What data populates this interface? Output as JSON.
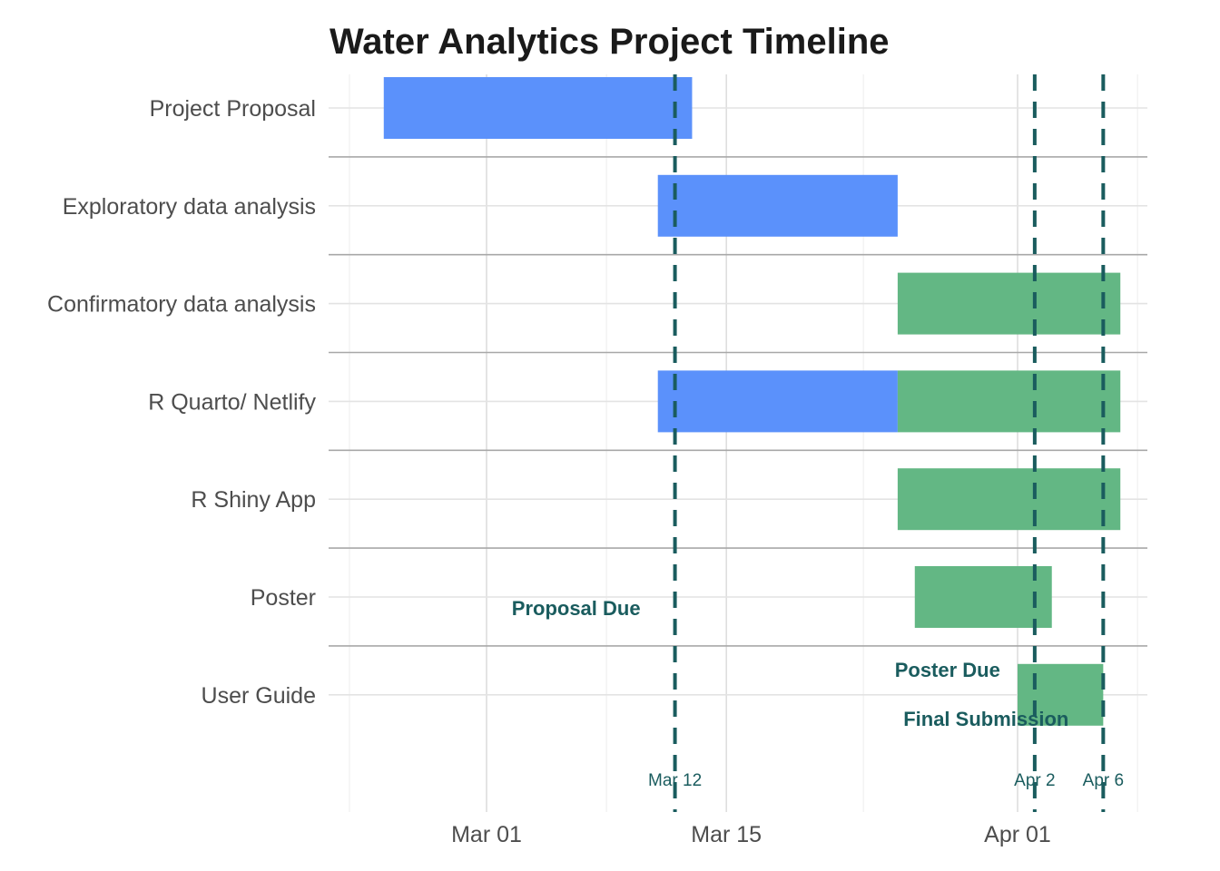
{
  "chart_data": {
    "type": "gantt",
    "title": "Water Analytics Project Timeline",
    "xlabel": "",
    "ylabel": "",
    "xlim": [
      "2024-02-22",
      "2024-04-09"
    ],
    "x_ticks": [
      {
        "date": "2024-03-01",
        "label": "Mar 01"
      },
      {
        "date": "2024-03-15",
        "label": "Mar 15"
      },
      {
        "date": "2024-04-01",
        "label": "Apr 01"
      }
    ],
    "x_minor_ticks": [
      "2024-02-22",
      "2024-03-08",
      "2024-03-23",
      "2024-04-08"
    ],
    "grid": true,
    "legend": "none",
    "colors": {
      "blue": "#5b91fb",
      "green": "#63b784",
      "deadline": "#1a5c5e"
    },
    "tasks": [
      {
        "name": "Project Proposal",
        "segments": [
          {
            "start": "2024-02-24",
            "end": "2024-03-13",
            "color": "blue"
          }
        ]
      },
      {
        "name": "Exploratory data analysis",
        "segments": [
          {
            "start": "2024-03-11",
            "end": "2024-03-25",
            "color": "blue"
          }
        ]
      },
      {
        "name": "Confirmatory data analysis",
        "segments": [
          {
            "start": "2024-03-25",
            "end": "2024-04-07",
            "color": "green"
          }
        ]
      },
      {
        "name": "R Quarto/ Netlify",
        "segments": [
          {
            "start": "2024-03-11",
            "end": "2024-03-25",
            "color": "blue"
          },
          {
            "start": "2024-03-25",
            "end": "2024-04-07",
            "color": "green"
          }
        ]
      },
      {
        "name": "R Shiny App",
        "segments": [
          {
            "start": "2024-03-25",
            "end": "2024-04-07",
            "color": "green"
          }
        ]
      },
      {
        "name": "Poster",
        "segments": [
          {
            "start": "2024-03-26",
            "end": "2024-04-03",
            "color": "green"
          }
        ]
      },
      {
        "name": "User Guide",
        "segments": [
          {
            "start": "2024-04-01",
            "end": "2024-04-06",
            "color": "green"
          }
        ]
      }
    ],
    "deadlines": [
      {
        "date": "2024-03-12",
        "date_label": "Mar 12",
        "label": "Proposal Due",
        "label_row": "Poster"
      },
      {
        "date": "2024-04-02",
        "date_label": "Apr 2",
        "label": "Poster Due",
        "label_row": "User Guide"
      },
      {
        "date": "2024-04-06",
        "date_label": "Apr 6",
        "label": "Final Submission",
        "label_row": "User Guide"
      }
    ]
  }
}
